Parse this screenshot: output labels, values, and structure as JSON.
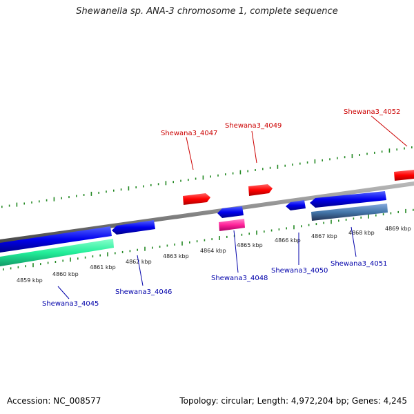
{
  "title": "Shewanella sp. ANA-3 chromosome 1, complete sequence",
  "accession_text": "Accession: NC_008577",
  "summary_text": "Topology: circular; Length: 4,972,204 bp; Genes: 4,245",
  "colors": {
    "forward_gene": "#ff0000",
    "reverse_gene": "#0000dd",
    "backbone": "#888888",
    "ticks": "#228822",
    "label_forward": "#cc0000",
    "label_reverse": "#0000aa"
  },
  "tick_labels": [
    "4859 kbp",
    "4860 kbp",
    "4861 kbp",
    "4862 kbp",
    "4863 kbp",
    "4864 kbp",
    "4865 kbp",
    "4866 kbp",
    "4867 kbp",
    "4868 kbp",
    "4869 kbp"
  ],
  "genes": [
    {
      "id": "Shewana3_4045",
      "label": "Shewana3_4045",
      "strand": "reverse"
    },
    {
      "id": "Shewana3_4046",
      "label": "Shewana3_4046",
      "strand": "reverse"
    },
    {
      "id": "Shewana3_4047",
      "label": "Shewana3_4047",
      "strand": "forward"
    },
    {
      "id": "Shewana3_4048",
      "label": "Shewana3_4048",
      "strand": "reverse"
    },
    {
      "id": "Shewana3_4049",
      "label": "Shewana3_4049",
      "strand": "forward"
    },
    {
      "id": "Shewana3_4050",
      "label": "Shewana3_4050",
      "strand": "reverse"
    },
    {
      "id": "Shewana3_4051",
      "label": "Shewana3_4051",
      "strand": "reverse"
    },
    {
      "id": "Shewana3_4052",
      "label": "Shewana3_4052",
      "strand": "forward"
    }
  ]
}
